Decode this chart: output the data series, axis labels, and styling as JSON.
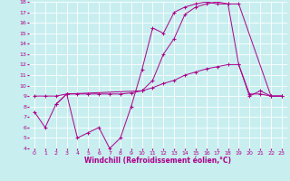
{
  "xlabel": "Windchill (Refroidissement éolien,°C)",
  "xlim": [
    -0.5,
    23.5
  ],
  "ylim": [
    4,
    18
  ],
  "xticks": [
    0,
    1,
    2,
    3,
    4,
    5,
    6,
    7,
    8,
    9,
    10,
    11,
    12,
    13,
    14,
    15,
    16,
    17,
    18,
    19,
    20,
    21,
    22,
    23
  ],
  "yticks": [
    4,
    5,
    6,
    7,
    8,
    9,
    10,
    11,
    12,
    13,
    14,
    15,
    16,
    17,
    18
  ],
  "bg_color": "#c8eef0",
  "line_color": "#aa0088",
  "grid_color": "#ffffff",
  "line1_x": [
    0,
    1,
    2,
    3,
    4,
    5,
    6,
    7,
    8,
    9,
    10,
    11,
    12,
    13,
    14,
    15,
    16,
    17,
    18,
    19,
    20,
    21,
    22,
    23
  ],
  "line1_y": [
    7.5,
    6.0,
    8.2,
    9.2,
    5.0,
    5.5,
    6.0,
    4.0,
    5.0,
    8.0,
    11.5,
    15.5,
    15.0,
    17.0,
    17.5,
    17.8,
    18.0,
    17.8,
    17.8,
    12.0,
    9.0,
    9.5,
    9.0,
    9.0
  ],
  "line2_x": [
    0,
    1,
    2,
    3,
    4,
    5,
    6,
    7,
    8,
    9,
    10,
    11,
    12,
    13,
    14,
    15,
    16,
    17,
    18,
    19,
    20,
    21,
    22,
    23
  ],
  "line2_y": [
    9.0,
    9.0,
    9.0,
    9.2,
    9.2,
    9.2,
    9.2,
    9.2,
    9.2,
    9.3,
    9.5,
    9.8,
    10.2,
    10.5,
    11.0,
    11.3,
    11.6,
    11.8,
    12.0,
    12.0,
    9.2,
    9.2,
    9.0,
    9.0
  ],
  "line3_x": [
    2,
    3,
    10,
    11,
    12,
    13,
    14,
    15,
    16,
    17,
    18,
    19,
    22,
    23
  ],
  "line3_y": [
    8.2,
    9.2,
    9.5,
    10.5,
    13.0,
    14.5,
    16.8,
    17.5,
    17.8,
    18.0,
    17.8,
    17.8,
    9.0,
    9.0
  ],
  "tick_fontsize": 4.5,
  "xlabel_fontsize": 5.5
}
